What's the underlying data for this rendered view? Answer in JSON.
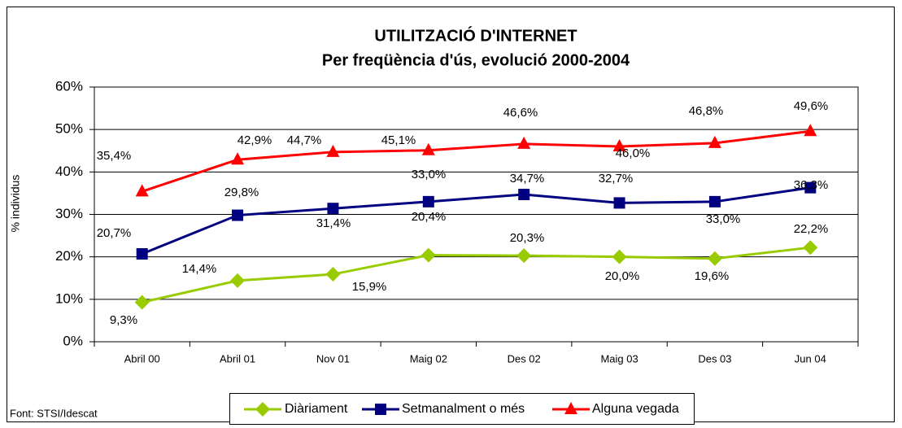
{
  "chart_data": {
    "type": "line",
    "title": "UTILITZACIÓ D'INTERNET",
    "subtitle": "Per freqüència d'ús, evolució 2000-2004",
    "y_label": "% individus",
    "source": "Font: STSI/Idescat",
    "categories": [
      "Abril 00",
      "Abril 01",
      "Nov 01",
      "Maig 02",
      "Des 02",
      "Maig 03",
      "Des 03",
      "Jun 04"
    ],
    "series": [
      {
        "name": "Diàriament",
        "color": "#99cc00",
        "marker": "diamond",
        "values": [
          9.3,
          14.4,
          15.9,
          20.4,
          20.3,
          20.0,
          19.6,
          22.2
        ],
        "value_labels": [
          "9,3%",
          "14,4%",
          "15,9%",
          "20,4%",
          "20,3%",
          "20,0%",
          "19,6%",
          "22,2%"
        ]
      },
      {
        "name": "Setmanalment o més",
        "color": "#000080",
        "marker": "square",
        "values": [
          20.7,
          29.8,
          31.4,
          33.0,
          34.7,
          32.7,
          33.0,
          36.3
        ],
        "value_labels": [
          "20,7%",
          "29,8%",
          "31,4%",
          "33,0%",
          "34,7%",
          "32,7%",
          "33,0%",
          "36,3%"
        ]
      },
      {
        "name": "Alguna vegada",
        "color": "#ff0000",
        "marker": "triangle",
        "values": [
          35.4,
          42.9,
          44.7,
          45.1,
          46.6,
          46.0,
          46.8,
          49.6
        ],
        "value_labels": [
          "35,4%",
          "42,9%",
          "44,7%",
          "45,1%",
          "46,6%",
          "46,0%",
          "46,8%",
          "49,6%"
        ]
      }
    ],
    "ylim": [
      0,
      60
    ],
    "yticks": [
      {
        "value": 0,
        "label": "0%"
      },
      {
        "value": 10,
        "label": "10%"
      },
      {
        "value": 20,
        "label": "20%"
      },
      {
        "value": 30,
        "label": "30%"
      },
      {
        "value": 40,
        "label": "40%"
      },
      {
        "value": 50,
        "label": "50%"
      },
      {
        "value": 60,
        "label": "60%"
      }
    ],
    "grid": true,
    "legend": "bottom"
  }
}
